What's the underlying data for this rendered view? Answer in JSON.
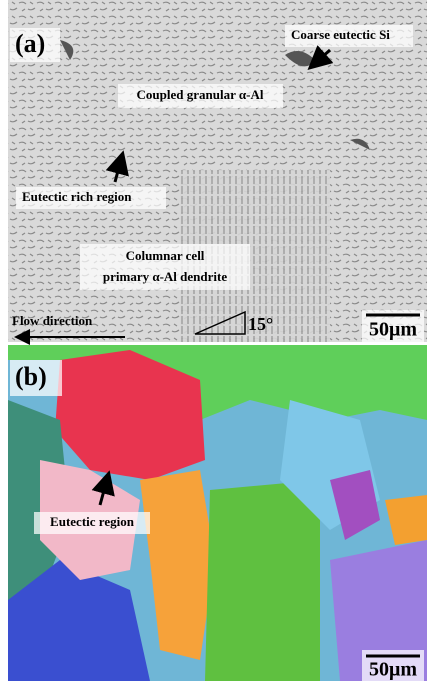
{
  "panels": [
    {
      "label": "(a)",
      "annotations": [
        "Coarse eutectic Si",
        "Coupled granular α-Al",
        "Eutectic rich region",
        "Columnar cell",
        "primary α-Al dendrite"
      ],
      "flow_direction": "Flow direction",
      "angle": "15°",
      "scale_bar": "50μm"
    },
    {
      "label": "(b)",
      "annotations": [
        "Eutectic region"
      ],
      "scale_bar": "50μm"
    }
  ]
}
